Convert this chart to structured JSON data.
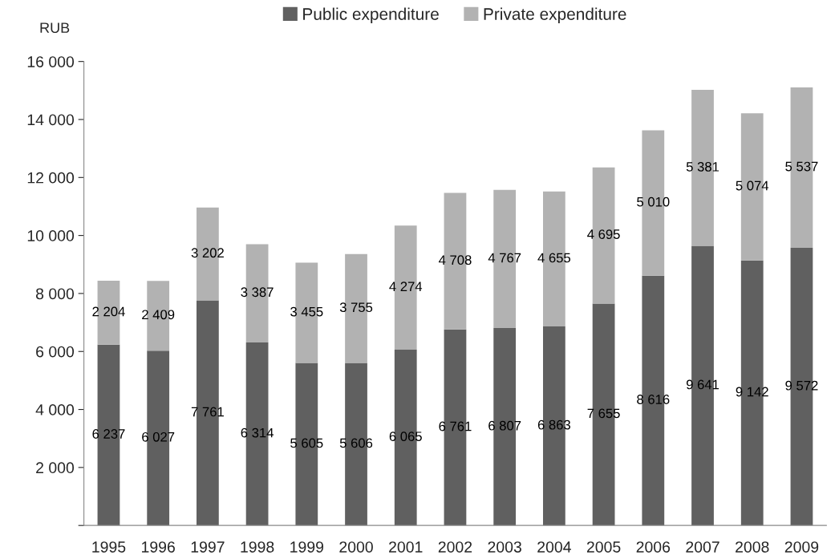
{
  "chart_data": {
    "type": "bar",
    "stacked": true,
    "ylabel": "RUB",
    "categories": [
      "1995",
      "1996",
      "1997",
      "1998",
      "1999",
      "2000",
      "2001",
      "2002",
      "2003",
      "2004",
      "2005",
      "2006",
      "2007",
      "2008",
      "2009"
    ],
    "series": [
      {
        "name": "Public expenditure",
        "color": "#606060",
        "values": [
          6237,
          6027,
          7761,
          6314,
          5605,
          5606,
          6065,
          6761,
          6807,
          6863,
          7655,
          8616,
          9641,
          9142,
          9572
        ],
        "value_labels": [
          "6 237",
          "6 027",
          "7 761",
          "6 314",
          "5 605",
          "5 606",
          "6 065",
          "6 761",
          "6 807",
          "6 863",
          "7 655",
          "8 616",
          "9 641",
          "9 142",
          "9 572"
        ]
      },
      {
        "name": "Private expenditure",
        "color": "#b2b2b2",
        "values": [
          2204,
          2409,
          3202,
          3387,
          3455,
          3755,
          4274,
          4708,
          4767,
          4655,
          4695,
          5010,
          5381,
          5074,
          5537
        ],
        "value_labels": [
          "2 204",
          "2 409",
          "3 202",
          "3 387",
          "3 455",
          "3 755",
          "4 274",
          "4 708",
          "4 767",
          "4 655",
          "4 695",
          "5 010",
          "5 381",
          "5 074",
          "5 537"
        ]
      }
    ],
    "ylim": [
      0,
      16000
    ],
    "yticks": [
      {
        "value": 0,
        "label": null
      },
      {
        "value": 2000,
        "label": "2 000"
      },
      {
        "value": 4000,
        "label": "4 000"
      },
      {
        "value": 6000,
        "label": "6 000"
      },
      {
        "value": 8000,
        "label": "8 000"
      },
      {
        "value": 10000,
        "label": "10 000"
      },
      {
        "value": 12000,
        "label": "12 000"
      },
      {
        "value": 14000,
        "label": "14 000"
      },
      {
        "value": 16000,
        "label": "16 000"
      }
    ],
    "grid": false,
    "legend": "top"
  }
}
